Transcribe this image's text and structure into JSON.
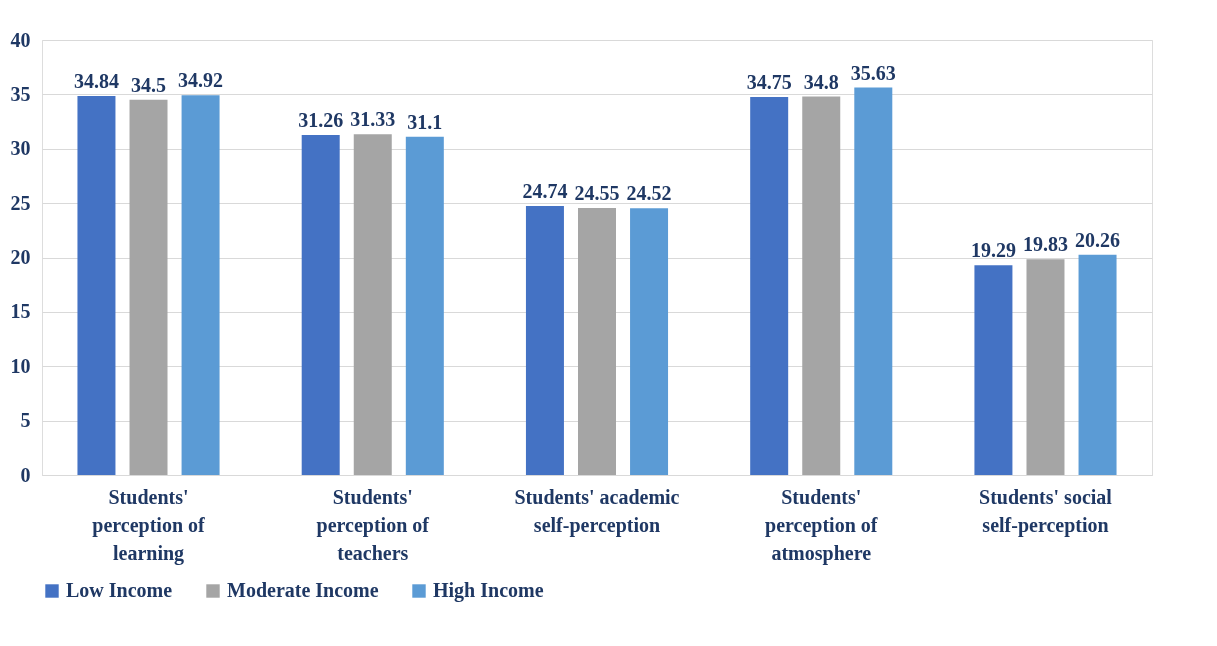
{
  "chart_data": {
    "type": "bar",
    "categories": [
      "Students' perception of learning",
      "Students' perception of teachers",
      "Students' academic self-perception",
      "Students' perception of atmosphere",
      "Students' social self-perception"
    ],
    "series": [
      {
        "name": "Low Income",
        "color": "#4472c4",
        "values": [
          34.84,
          31.26,
          24.74,
          34.75,
          19.29
        ]
      },
      {
        "name": "Moderate Income",
        "color": "#a5a5a5",
        "values": [
          34.5,
          31.33,
          24.55,
          34.8,
          19.83
        ]
      },
      {
        "name": "High Income",
        "color": "#5b9bd5",
        "values": [
          34.92,
          31.1,
          24.52,
          35.63,
          20.26
        ]
      }
    ],
    "ylim": [
      0,
      40
    ],
    "yticks": [
      0,
      5,
      10,
      15,
      20,
      25,
      30,
      35,
      40
    ],
    "grid": "y",
    "legend": "bottom",
    "data_labels": true
  }
}
